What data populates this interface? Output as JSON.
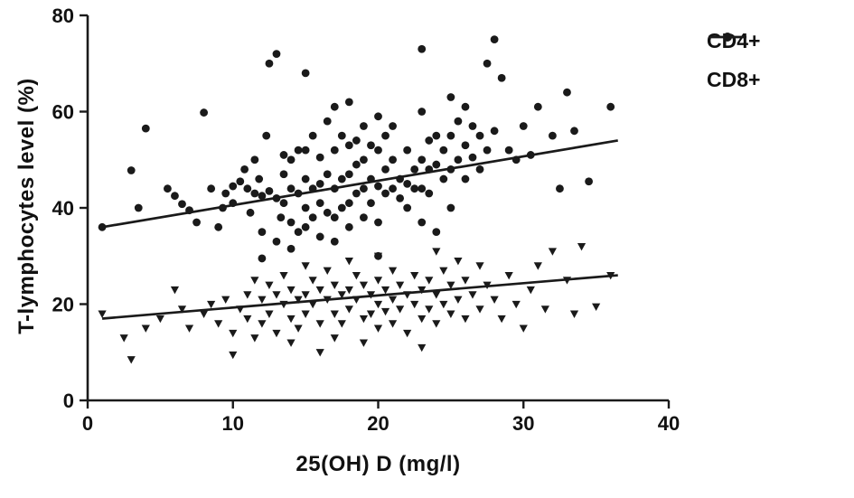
{
  "chart_data": {
    "type": "scatter",
    "title": "",
    "xlabel": "25(OH) D (mg/l)",
    "ylabel": "T-lymphocytes level (%)",
    "xlim": [
      0,
      40
    ],
    "ylim": [
      0,
      80
    ],
    "x_ticks": [
      0,
      10,
      20,
      30,
      40
    ],
    "y_ticks": [
      0,
      20,
      40,
      60,
      80
    ],
    "grid": false,
    "legend_position": "top-right",
    "axis_color": "#1a1a1a",
    "series": [
      {
        "name": "CD4+",
        "marker": "circle",
        "color": "#1a1a1a",
        "trend_line": {
          "x1": 1,
          "y1": 36,
          "x2": 36.5,
          "y2": 54
        },
        "points": [
          [
            1,
            36
          ],
          [
            3,
            47.8
          ],
          [
            3.5,
            40
          ],
          [
            4,
            56.5
          ],
          [
            5.5,
            44
          ],
          [
            6,
            42.5
          ],
          [
            6.5,
            40.8
          ],
          [
            7,
            39.5
          ],
          [
            7.5,
            37
          ],
          [
            8,
            59.8
          ],
          [
            8.5,
            44
          ],
          [
            9,
            36
          ],
          [
            9.3,
            40
          ],
          [
            9.5,
            43
          ],
          [
            10,
            44.5
          ],
          [
            10,
            41
          ],
          [
            10.5,
            45.5
          ],
          [
            10.8,
            48
          ],
          [
            11,
            44
          ],
          [
            11.2,
            39
          ],
          [
            11.5,
            50
          ],
          [
            11.5,
            43
          ],
          [
            11.8,
            46
          ],
          [
            12,
            42.5
          ],
          [
            12,
            35
          ],
          [
            12,
            29.5
          ],
          [
            12.3,
            55
          ],
          [
            12.5,
            70
          ],
          [
            12.5,
            43.5
          ],
          [
            13,
            72
          ],
          [
            13,
            42
          ],
          [
            13,
            33
          ],
          [
            13.3,
            38
          ],
          [
            13.5,
            51
          ],
          [
            13.5,
            47
          ],
          [
            13.5,
            41
          ],
          [
            14,
            50
          ],
          [
            14,
            44
          ],
          [
            14,
            37
          ],
          [
            14,
            31.5
          ],
          [
            14.5,
            52
          ],
          [
            14.5,
            43
          ],
          [
            14.5,
            35
          ],
          [
            15,
            68
          ],
          [
            15,
            52
          ],
          [
            15,
            46
          ],
          [
            15,
            40
          ],
          [
            15,
            36
          ],
          [
            15.5,
            55
          ],
          [
            15.5,
            44
          ],
          [
            15.5,
            38
          ],
          [
            16,
            50.5
          ],
          [
            16,
            45
          ],
          [
            16,
            41
          ],
          [
            16,
            34
          ],
          [
            16.5,
            58
          ],
          [
            16.5,
            47
          ],
          [
            16.5,
            39
          ],
          [
            17,
            61
          ],
          [
            17,
            52
          ],
          [
            17,
            44
          ],
          [
            17,
            38
          ],
          [
            17,
            33
          ],
          [
            17.5,
            55
          ],
          [
            17.5,
            46
          ],
          [
            17.5,
            40
          ],
          [
            18,
            62
          ],
          [
            18,
            53
          ],
          [
            18,
            47
          ],
          [
            18,
            41
          ],
          [
            18,
            36
          ],
          [
            18.5,
            54
          ],
          [
            18.5,
            49
          ],
          [
            18.5,
            43
          ],
          [
            19,
            57
          ],
          [
            19,
            50
          ],
          [
            19,
            44
          ],
          [
            19,
            38
          ],
          [
            19.5,
            53
          ],
          [
            19.5,
            46
          ],
          [
            19.5,
            41
          ],
          [
            20,
            59
          ],
          [
            20,
            52
          ],
          [
            20,
            44.5
          ],
          [
            20,
            37
          ],
          [
            20,
            30
          ],
          [
            20.5,
            55
          ],
          [
            20.5,
            48
          ],
          [
            20.5,
            43
          ],
          [
            21,
            57
          ],
          [
            21,
            50
          ],
          [
            21,
            44
          ],
          [
            21.5,
            46
          ],
          [
            21.5,
            42
          ],
          [
            22,
            52
          ],
          [
            22,
            45
          ],
          [
            22,
            40
          ],
          [
            22.5,
            48
          ],
          [
            22.5,
            44
          ],
          [
            23,
            73
          ],
          [
            23,
            60
          ],
          [
            23,
            50
          ],
          [
            23,
            44
          ],
          [
            23,
            37
          ],
          [
            23.5,
            54
          ],
          [
            23.5,
            48
          ],
          [
            23.5,
            43
          ],
          [
            24,
            55
          ],
          [
            24,
            49
          ],
          [
            24,
            35
          ],
          [
            24.5,
            52
          ],
          [
            24.5,
            46
          ],
          [
            25,
            63
          ],
          [
            25,
            55
          ],
          [
            25,
            48
          ],
          [
            25,
            40
          ],
          [
            25.5,
            58
          ],
          [
            25.5,
            50
          ],
          [
            26,
            61
          ],
          [
            26,
            53
          ],
          [
            26,
            46
          ],
          [
            26.5,
            57
          ],
          [
            26.5,
            50.5
          ],
          [
            27,
            55
          ],
          [
            27,
            48
          ],
          [
            27.5,
            70
          ],
          [
            27.5,
            52
          ],
          [
            28,
            75
          ],
          [
            28,
            56
          ],
          [
            28.5,
            67
          ],
          [
            29,
            52
          ],
          [
            29.5,
            50
          ],
          [
            30,
            57
          ],
          [
            30.5,
            51
          ],
          [
            31,
            61
          ],
          [
            32,
            55
          ],
          [
            32.5,
            44
          ],
          [
            33,
            64
          ],
          [
            33.5,
            56
          ],
          [
            34.5,
            45.5
          ],
          [
            36,
            61
          ]
        ]
      },
      {
        "name": "CD8+",
        "marker": "triangle-down",
        "color": "#1a1a1a",
        "trend_line": {
          "x1": 1,
          "y1": 17,
          "x2": 36.5,
          "y2": 26
        },
        "points": [
          [
            1,
            18
          ],
          [
            2.5,
            13
          ],
          [
            3,
            8.5
          ],
          [
            4,
            15
          ],
          [
            5,
            17
          ],
          [
            6,
            23
          ],
          [
            6.5,
            19
          ],
          [
            7,
            15
          ],
          [
            8,
            18
          ],
          [
            8.5,
            20
          ],
          [
            9,
            16
          ],
          [
            9.5,
            21
          ],
          [
            10,
            14
          ],
          [
            10,
            9.5
          ],
          [
            10.5,
            19
          ],
          [
            11,
            22
          ],
          [
            11,
            17
          ],
          [
            11.5,
            25
          ],
          [
            11.5,
            13
          ],
          [
            12,
            21
          ],
          [
            12,
            16
          ],
          [
            12.5,
            24
          ],
          [
            12.5,
            18
          ],
          [
            13,
            22
          ],
          [
            13,
            14
          ],
          [
            13.5,
            26
          ],
          [
            13.5,
            20
          ],
          [
            14,
            23
          ],
          [
            14,
            17
          ],
          [
            14,
            12
          ],
          [
            14.5,
            21
          ],
          [
            14.5,
            15
          ],
          [
            15,
            28
          ],
          [
            15,
            22
          ],
          [
            15,
            18
          ],
          [
            15.5,
            25
          ],
          [
            15.5,
            20
          ],
          [
            16,
            23
          ],
          [
            16,
            16
          ],
          [
            16,
            10
          ],
          [
            16.5,
            27
          ],
          [
            16.5,
            21
          ],
          [
            17,
            24
          ],
          [
            17,
            18
          ],
          [
            17,
            13
          ],
          [
            17.5,
            22
          ],
          [
            17.5,
            16
          ],
          [
            18,
            29
          ],
          [
            18,
            23
          ],
          [
            18,
            19
          ],
          [
            18.5,
            26
          ],
          [
            18.5,
            21
          ],
          [
            19,
            24
          ],
          [
            19,
            17
          ],
          [
            19,
            12
          ],
          [
            19.5,
            22
          ],
          [
            19.5,
            18
          ],
          [
            20,
            30
          ],
          [
            20,
            25
          ],
          [
            20,
            20
          ],
          [
            20,
            15
          ],
          [
            20.5,
            23
          ],
          [
            20.5,
            18.5
          ],
          [
            21,
            27
          ],
          [
            21,
            21
          ],
          [
            21,
            16
          ],
          [
            21.5,
            24
          ],
          [
            21.5,
            19
          ],
          [
            22,
            22
          ],
          [
            22,
            14
          ],
          [
            22.5,
            26
          ],
          [
            22.5,
            20
          ],
          [
            23,
            23
          ],
          [
            23,
            17
          ],
          [
            23,
            11
          ],
          [
            23.5,
            25
          ],
          [
            23.5,
            19
          ],
          [
            24,
            31
          ],
          [
            24,
            22
          ],
          [
            24,
            16
          ],
          [
            24.5,
            27
          ],
          [
            24.5,
            20
          ],
          [
            25,
            24
          ],
          [
            25,
            18
          ],
          [
            25.5,
            29
          ],
          [
            25.5,
            21
          ],
          [
            26,
            25
          ],
          [
            26,
            17
          ],
          [
            26.5,
            22
          ],
          [
            27,
            28
          ],
          [
            27,
            19
          ],
          [
            27.5,
            24
          ],
          [
            28,
            21
          ],
          [
            28.5,
            17
          ],
          [
            29,
            26
          ],
          [
            29.5,
            20
          ],
          [
            30,
            15
          ],
          [
            30.5,
            23
          ],
          [
            31,
            28
          ],
          [
            31.5,
            19
          ],
          [
            32,
            31
          ],
          [
            33,
            25
          ],
          [
            33.5,
            18
          ],
          [
            34,
            32
          ],
          [
            35,
            19.5
          ],
          [
            36,
            26
          ]
        ]
      }
    ]
  }
}
